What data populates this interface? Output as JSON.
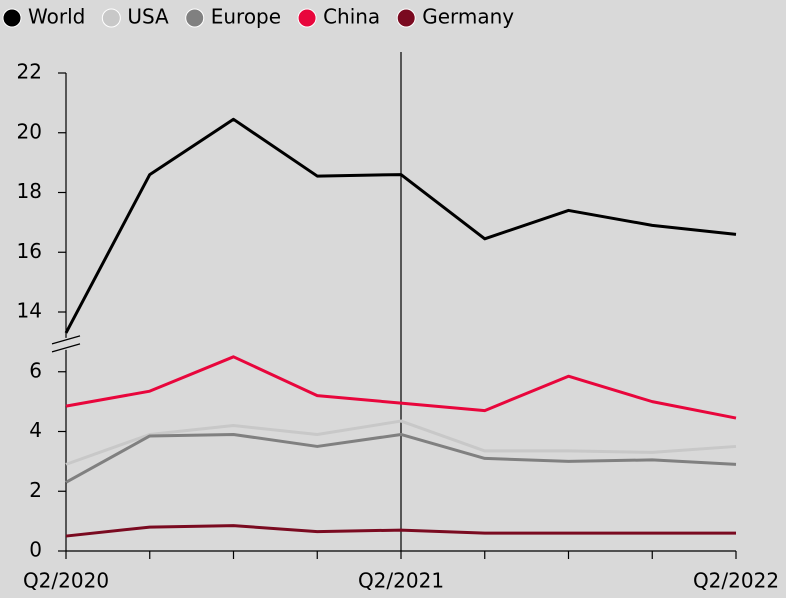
{
  "chart_data": {
    "type": "line",
    "categories": [
      "Q2/2020",
      null,
      null,
      null,
      "Q2/2021",
      null,
      null,
      null,
      "Q2/2022"
    ],
    "series": [
      {
        "name": "World",
        "color": "#000000",
        "values": [
          13.3,
          18.6,
          20.45,
          18.55,
          18.6,
          16.45,
          17.4,
          16.9,
          16.6
        ]
      },
      {
        "name": "USA",
        "color": "#c8c8c8",
        "values": [
          2.9,
          3.9,
          4.2,
          3.9,
          4.35,
          3.35,
          3.35,
          3.3,
          3.5
        ]
      },
      {
        "name": "Europe",
        "color": "#808080",
        "values": [
          2.3,
          3.85,
          3.9,
          3.5,
          3.9,
          3.1,
          3.0,
          3.05,
          2.9
        ]
      },
      {
        "name": "China",
        "color": "#e8063c",
        "values": [
          4.85,
          5.35,
          6.5,
          5.2,
          4.95,
          4.7,
          5.85,
          5.0,
          4.45
        ]
      },
      {
        "name": "Germany",
        "color": "#7a0a20",
        "values": [
          0.5,
          0.8,
          0.85,
          0.65,
          0.7,
          0.6,
          0.6,
          0.6,
          0.6
        ]
      }
    ],
    "ylim": [
      0,
      22
    ],
    "ybreak": [
      7,
      13
    ],
    "yticks": [
      0,
      2,
      4,
      6,
      14,
      16,
      18,
      20,
      22
    ],
    "vline": 4,
    "legend": "top-left"
  }
}
